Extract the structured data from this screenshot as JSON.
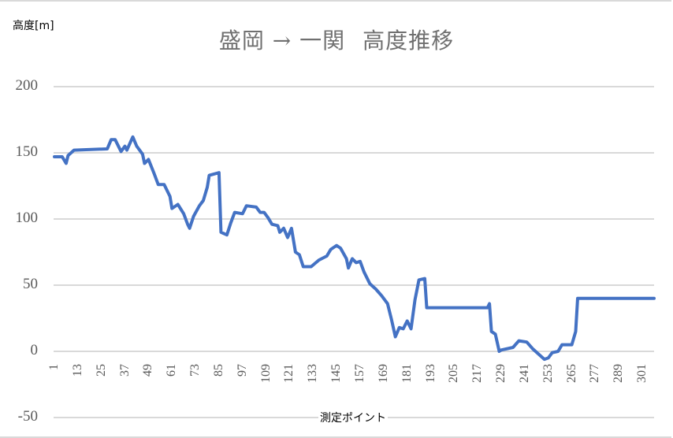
{
  "chart": {
    "title_part1": "盛岡 → 一関",
    "title_part2": "高度推移",
    "y_unit_label": "高度[m]",
    "x_axis_label": "測定ポイント",
    "line_color": "#4472c4",
    "grid_color": "#d9d9d9"
  },
  "y_ticks": [
    "200",
    "150",
    "100",
    "50",
    "0",
    "-50"
  ],
  "x_ticks": [
    "1",
    "13",
    "25",
    "37",
    "49",
    "61",
    "73",
    "85",
    "97",
    "109",
    "121",
    "133",
    "145",
    "157",
    "169",
    "181",
    "193",
    "205",
    "217",
    "229",
    "241",
    "253",
    "265",
    "277",
    "289",
    "301"
  ],
  "chart_data": {
    "type": "line",
    "title": "盛岡 → 一関　高度推移",
    "xlabel": "測定ポイント",
    "ylabel": "高度[m]",
    "ylim": [
      -50,
      200
    ],
    "yticks": [
      -50,
      0,
      50,
      100,
      150,
      200
    ],
    "xlim": [
      1,
      307
    ],
    "xticks": [
      1,
      13,
      25,
      37,
      49,
      61,
      73,
      85,
      97,
      109,
      121,
      133,
      145,
      157,
      169,
      181,
      193,
      205,
      217,
      229,
      241,
      253,
      265,
      277,
      289,
      301
    ],
    "grid": true,
    "legend": null,
    "series": [
      {
        "name": "高度",
        "x": [
          1,
          5,
          7,
          8,
          11,
          28,
          30,
          32,
          35,
          37,
          38,
          41,
          43,
          46,
          47,
          49,
          52,
          54,
          57,
          60,
          61,
          64,
          67,
          69,
          70,
          72,
          75,
          77,
          79,
          80,
          85,
          86,
          89,
          91,
          93,
          97,
          99,
          104,
          106,
          108,
          110,
          112,
          115,
          116,
          118,
          120,
          122,
          124,
          126,
          128,
          132,
          136,
          140,
          142,
          145,
          147,
          150,
          151,
          153,
          155,
          157,
          159,
          162,
          165,
          168,
          171,
          173,
          175,
          177,
          179,
          181,
          183,
          185,
          187,
          190,
          191,
          222,
          223,
          224,
          226,
          228,
          229,
          235,
          238,
          242,
          245,
          248,
          251,
          253,
          255,
          258,
          260,
          265,
          267,
          268,
          307
        ],
        "values": [
          147,
          147,
          142,
          148,
          152,
          153,
          160,
          160,
          151,
          155,
          152,
          162,
          155,
          149,
          142,
          145,
          134,
          126,
          126,
          117,
          108,
          111,
          104,
          96,
          93,
          102,
          110,
          114,
          124,
          133,
          135,
          90,
          88,
          97,
          105,
          104,
          110,
          109,
          105,
          105,
          101,
          96,
          95,
          90,
          93,
          86,
          93,
          75,
          73,
          64,
          64,
          69,
          72,
          77,
          80,
          78,
          70,
          63,
          70,
          67,
          68,
          60,
          51,
          47,
          42,
          36,
          24,
          11,
          18,
          17,
          23,
          17,
          39,
          54,
          55,
          33,
          33,
          36,
          15,
          13,
          0,
          1,
          3,
          8,
          7,
          2,
          -2,
          -6,
          -5,
          -1,
          0,
          5,
          5,
          15,
          40,
          40
        ]
      }
    ]
  }
}
